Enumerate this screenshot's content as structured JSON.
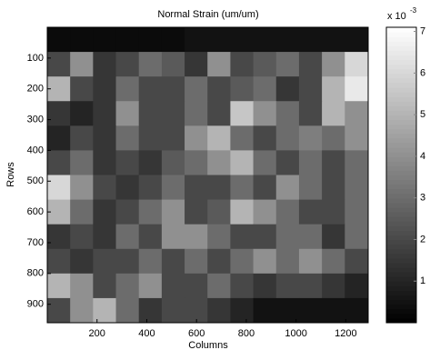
{
  "chart_data": {
    "type": "heatmap",
    "title": "Normal Strain (um/um)",
    "x_label": "Columns",
    "y_label": "Rows",
    "colorbar_multiplier": "x 10",
    "colorbar_exponent": "-3",
    "colormap": "gray",
    "x": [
      46,
      138,
      230,
      322,
      414,
      506,
      598,
      690,
      782,
      874,
      966,
      1058,
      1150,
      1242
    ],
    "y": [
      40,
      120,
      200,
      280,
      360,
      440,
      520,
      600,
      680,
      760,
      840,
      920
    ],
    "z": [
      [
        0.3,
        0.3,
        0.3,
        0.3,
        0.3,
        0.3,
        0.5,
        0.5,
        0.5,
        0.5,
        0.5,
        0.5,
        0.5,
        0.5
      ],
      [
        2,
        4,
        1.5,
        2,
        3,
        2.5,
        1.5,
        4,
        2,
        2.5,
        3,
        2,
        4,
        6
      ],
      [
        5,
        2,
        1.5,
        3,
        2,
        2,
        3,
        2,
        2.5,
        3,
        1.5,
        2,
        5,
        6.5
      ],
      [
        1.5,
        1,
        1.5,
        4,
        2,
        2,
        3,
        2,
        5.5,
        4,
        3,
        2,
        5,
        4
      ],
      [
        1,
        2,
        1.5,
        3,
        2,
        2,
        4,
        5,
        3,
        2,
        3,
        3.5,
        3,
        4
      ],
      [
        2,
        3,
        1.5,
        2,
        1.5,
        2.5,
        3,
        4,
        5,
        3,
        2,
        3,
        2,
        3
      ],
      [
        6,
        4,
        2,
        1.5,
        2,
        3,
        2,
        2,
        3,
        2,
        4,
        3,
        2,
        3
      ],
      [
        5,
        3,
        1.5,
        2,
        3,
        4,
        2,
        2.5,
        5,
        4,
        3,
        2,
        2,
        3
      ],
      [
        1.5,
        2,
        1.5,
        3,
        2,
        4,
        4,
        3,
        2,
        2,
        3,
        3,
        1.5,
        3
      ],
      [
        2,
        1.5,
        2,
        2,
        3,
        2,
        3,
        2,
        3,
        4,
        3,
        4,
        3,
        2
      ],
      [
        5,
        4,
        2,
        3,
        4,
        2,
        2,
        3,
        2,
        1.5,
        2,
        2,
        1.5,
        1
      ],
      [
        2,
        4,
        5,
        3,
        1.5,
        2,
        2,
        1.5,
        1,
        0.5,
        0.5,
        0.5,
        0.5,
        0.5
      ]
    ],
    "xlim": [
      0,
      1290
    ],
    "ylim": [
      960,
      0
    ],
    "clim": [
      0,
      7.1
    ],
    "xticks": [
      200,
      400,
      600,
      800,
      1000,
      1200
    ],
    "yticks": [
      100,
      200,
      300,
      400,
      500,
      600,
      700,
      800,
      900
    ],
    "cticks": [
      1,
      2,
      3,
      4,
      5,
      6,
      7
    ]
  }
}
